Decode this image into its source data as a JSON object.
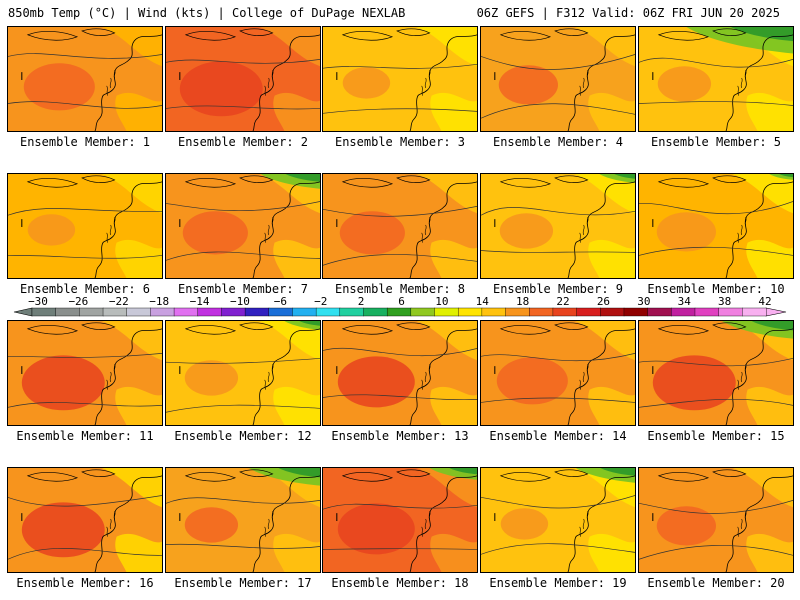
{
  "header": {
    "left": "850mb Temp (°C) | Wind (kts) | College of DuPage NEXLAB",
    "right": "06Z GEFS | F312 Valid: 06Z FRI JUN 20 2025"
  },
  "members": [
    {
      "label": "Ensemble Member: 1",
      "base": "#f7941d",
      "warm": "#f26522",
      "cool": "#ffb400",
      "green": 0,
      "warm_level": 0.6
    },
    {
      "label": "Ensemble Member: 2",
      "base": "#f26522",
      "warm": "#e8431e",
      "cool": "#f7941d",
      "green": 0,
      "warm_level": 0.8
    },
    {
      "label": "Ensemble Member: 3",
      "base": "#ffc20e",
      "warm": "#f7941d",
      "cool": "#ffe400",
      "green": 0,
      "warm_level": 0.2
    },
    {
      "label": "Ensemble Member: 4",
      "base": "#f7a21d",
      "warm": "#f26522",
      "cool": "#ffc20e",
      "green": 0,
      "warm_level": 0.4
    },
    {
      "label": "Ensemble Member: 5",
      "base": "#ffc20e",
      "warm": "#f7941d",
      "cool": "#ffe400",
      "green": 0.9,
      "warm_level": 0.3
    },
    {
      "label": "Ensemble Member: 6",
      "base": "#ffb400",
      "warm": "#f7941d",
      "cool": "#ffd700",
      "green": 0,
      "warm_level": 0.2
    },
    {
      "label": "Ensemble Member: 7",
      "base": "#f7941d",
      "warm": "#f26522",
      "cool": "#ffc20e",
      "green": 0.5,
      "warm_level": 0.5
    },
    {
      "label": "Ensemble Member: 8",
      "base": "#f7941d",
      "warm": "#f26522",
      "cool": "#ffc20e",
      "green": 0,
      "warm_level": 0.5
    },
    {
      "label": "Ensemble Member: 9",
      "base": "#ffc20e",
      "warm": "#f7941d",
      "cool": "#ffe400",
      "green": 0.3,
      "warm_level": 0.3
    },
    {
      "label": "Ensemble Member: 10",
      "base": "#ffb400",
      "warm": "#f7941d",
      "cool": "#ffe400",
      "green": 0.2,
      "warm_level": 0.4
    },
    {
      "label": "Ensemble Member: 11",
      "base": "#f7941d",
      "warm": "#e8431e",
      "cool": "#ffc20e",
      "green": 0,
      "warm_level": 0.8
    },
    {
      "label": "Ensemble Member: 12",
      "base": "#ffc20e",
      "warm": "#f7941d",
      "cool": "#ffe400",
      "green": 0.3,
      "warm_level": 0.3
    },
    {
      "label": "Ensemble Member: 13",
      "base": "#f7941d",
      "warm": "#e8431e",
      "cool": "#ffc20e",
      "green": 0,
      "warm_level": 0.7
    },
    {
      "label": "Ensemble Member: 14",
      "base": "#f7941d",
      "warm": "#f26522",
      "cool": "#ffc20e",
      "green": 0,
      "warm_level": 0.6
    },
    {
      "label": "Ensemble Member: 15",
      "base": "#f7941d",
      "warm": "#e8431e",
      "cool": "#ffc20e",
      "green": 0.6,
      "warm_level": 0.8
    },
    {
      "label": "Ensemble Member: 16",
      "base": "#f7941d",
      "warm": "#e8431e",
      "cool": "#ffd700",
      "green": 0,
      "warm_level": 0.8
    },
    {
      "label": "Ensemble Member: 17",
      "base": "#f7a21d",
      "warm": "#f26522",
      "cool": "#ffc20e",
      "green": 0.6,
      "warm_level": 0.3
    },
    {
      "label": "Ensemble Member: 18",
      "base": "#f26522",
      "warm": "#e8431e",
      "cool": "#f7941d",
      "green": 0.4,
      "warm_level": 0.7
    },
    {
      "label": "Ensemble Member: 19",
      "base": "#ffc20e",
      "warm": "#f7941d",
      "cool": "#ffe400",
      "green": 0.5,
      "warm_level": 0.2
    },
    {
      "label": "Ensemble Member: 20",
      "base": "#f7941d",
      "warm": "#f26522",
      "cool": "#ffc20e",
      "green": 0,
      "warm_level": 0.4
    }
  ],
  "colorbar": {
    "ticks": [
      "-30",
      "-26",
      "-22",
      "-18",
      "-14",
      "-10",
      "-6",
      "-2",
      "2",
      "6",
      "10",
      "14",
      "18",
      "22",
      "26",
      "30",
      "34",
      "38",
      "42"
    ],
    "colors": [
      "#6f7f7a",
      "#8a8f8d",
      "#a0a4a2",
      "#b8bcbb",
      "#c8c8d8",
      "#c8a0e0",
      "#e070f0",
      "#c030e0",
      "#8020d0",
      "#3020c0",
      "#1a6ed8",
      "#22b0f0",
      "#30e0f0",
      "#20d0a0",
      "#18b060",
      "#30a020",
      "#90c820",
      "#e0f000",
      "#ffe400",
      "#ffc20e",
      "#f7941d",
      "#f26522",
      "#e8431e",
      "#d81e1e",
      "#b01010",
      "#900000",
      "#a01050",
      "#c020a0",
      "#e040c0",
      "#f080e0",
      "#f8b0f0"
    ]
  }
}
